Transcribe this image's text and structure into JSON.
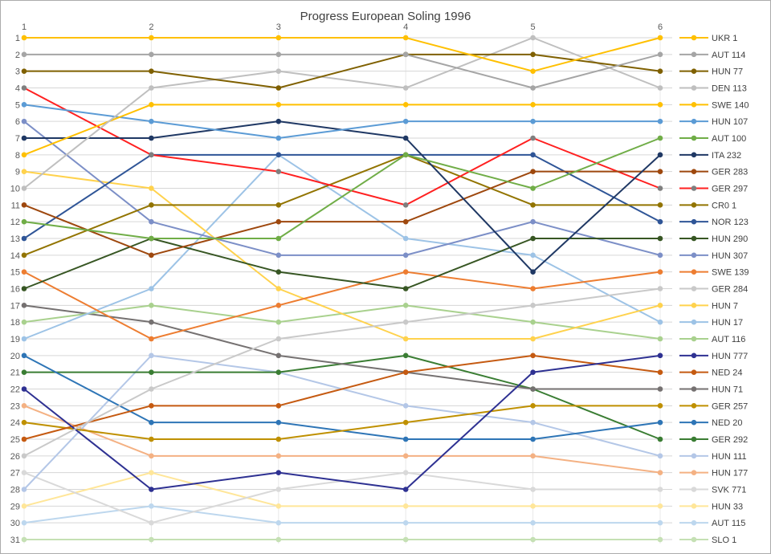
{
  "title": "Progress European Soling 1996",
  "axes": {
    "x_ticks": [
      "1",
      "2",
      "3",
      "4",
      "5",
      "6"
    ],
    "y_tick_min": 1,
    "y_tick_max": 31
  },
  "style_colors": {
    "title": "#404040",
    "ticks": "#595959",
    "legend_text": "#404040",
    "grid_horizontal": "#d6d6d6",
    "grid_vertical": "#e8e8e8",
    "frame_border": "#ababab"
  },
  "chart_data": {
    "type": "line",
    "title": "Progress European Soling 1996",
    "xlabel": "",
    "ylabel": "",
    "x": [
      1,
      2,
      3,
      4,
      5,
      6
    ],
    "x_axis_position": "top",
    "y_axis_inverted": true,
    "ylim": [
      1,
      31
    ],
    "grid": true,
    "legend_position": "right",
    "series": [
      {
        "name": "UKR 1",
        "color": "#ffc000",
        "ranks": [
          1,
          1,
          1,
          1,
          3,
          1
        ]
      },
      {
        "name": "AUT 114",
        "color": "#a5a5a5",
        "ranks": [
          2,
          2,
          2,
          2,
          4,
          2
        ]
      },
      {
        "name": "HUN 77",
        "color": "#7f6000",
        "ranks": [
          3,
          3,
          4,
          2,
          2,
          3
        ]
      },
      {
        "name": "DEN 113",
        "color": "#bfbfbf",
        "ranks": [
          10,
          4,
          3,
          4,
          1,
          4
        ]
      },
      {
        "name": "SWE 140",
        "color": "#ffc000",
        "ranks": [
          8,
          5,
          5,
          5,
          5,
          5
        ]
      },
      {
        "name": "HUN 107",
        "color": "#5b9bd5",
        "ranks": [
          5,
          6,
          7,
          6,
          6,
          6
        ]
      },
      {
        "name": "AUT 100",
        "color": "#70ad47",
        "ranks": [
          12,
          13,
          13,
          8,
          10,
          7
        ]
      },
      {
        "name": "ITA 232",
        "color": "#1f3864",
        "ranks": [
          7,
          7,
          6,
          7,
          15,
          8
        ]
      },
      {
        "name": "GER 283",
        "color": "#9e480e",
        "ranks": [
          11,
          14,
          12,
          12,
          9,
          9
        ]
      },
      {
        "name": "GER 297",
        "color": "#ff2020",
        "marker_color": "#7f7f7f",
        "ranks": [
          4,
          8,
          9,
          11,
          7,
          10
        ]
      },
      {
        "name": "CR0 1",
        "color": "#927400",
        "ranks": [
          14,
          11,
          11,
          8,
          11,
          11
        ]
      },
      {
        "name": "NOR 123",
        "color": "#2f5597",
        "ranks": [
          13,
          8,
          8,
          8,
          8,
          12
        ]
      },
      {
        "name": "HUN 290",
        "color": "#375623",
        "ranks": [
          16,
          13,
          15,
          16,
          13,
          13
        ]
      },
      {
        "name": "HUN 307",
        "color": "#7c8fc7",
        "ranks": [
          6,
          12,
          14,
          14,
          12,
          14
        ]
      },
      {
        "name": "SWE 139",
        "color": "#ed7d31",
        "ranks": [
          15,
          19,
          17,
          15,
          16,
          15
        ]
      },
      {
        "name": "GER 284",
        "color": "#c9c9c9",
        "ranks": [
          26,
          22,
          19,
          18,
          17,
          16
        ]
      },
      {
        "name": "HUN 7",
        "color": "#ffd24d",
        "ranks": [
          9,
          10,
          16,
          19,
          19,
          17
        ]
      },
      {
        "name": "HUN 17",
        "color": "#9dc3e6",
        "ranks": [
          19,
          16,
          8,
          13,
          14,
          18
        ]
      },
      {
        "name": "AUT 116",
        "color": "#a9d18e",
        "ranks": [
          18,
          17,
          18,
          17,
          18,
          19
        ]
      },
      {
        "name": "HUN 777",
        "color": "#2e3192",
        "ranks": [
          22,
          28,
          27,
          28,
          21,
          20
        ]
      },
      {
        "name": "NED 24",
        "color": "#c55a11",
        "ranks": [
          25,
          23,
          23,
          21,
          20,
          21
        ]
      },
      {
        "name": "HUN 71",
        "color": "#757171",
        "ranks": [
          17,
          18,
          20,
          21,
          22,
          22
        ]
      },
      {
        "name": "GER 257",
        "color": "#bf9000",
        "ranks": [
          24,
          25,
          25,
          24,
          23,
          23
        ]
      },
      {
        "name": "NED 20",
        "color": "#2e75b6",
        "ranks": [
          20,
          24,
          24,
          25,
          25,
          24
        ]
      },
      {
        "name": "GER 292",
        "color": "#3a7d33",
        "ranks": [
          21,
          21,
          21,
          20,
          22,
          25
        ]
      },
      {
        "name": "HUN 111",
        "color": "#b4c7e7",
        "ranks": [
          28,
          20,
          21,
          23,
          24,
          26
        ]
      },
      {
        "name": "HUN 177",
        "color": "#f4b183",
        "ranks": [
          23,
          26,
          26,
          26,
          26,
          27
        ]
      },
      {
        "name": "SVK 771",
        "color": "#d9d9d9",
        "ranks": [
          27,
          30,
          28,
          27,
          28,
          28
        ]
      },
      {
        "name": "HUN 33",
        "color": "#ffe699",
        "ranks": [
          29,
          27,
          29,
          29,
          29,
          29
        ]
      },
      {
        "name": "AUT 115",
        "color": "#bdd7ee",
        "ranks": [
          30,
          29,
          30,
          30,
          30,
          30
        ]
      },
      {
        "name": "SLO 1",
        "color": "#c5e0b4",
        "ranks": [
          31,
          31,
          31,
          31,
          31,
          31
        ]
      }
    ]
  }
}
